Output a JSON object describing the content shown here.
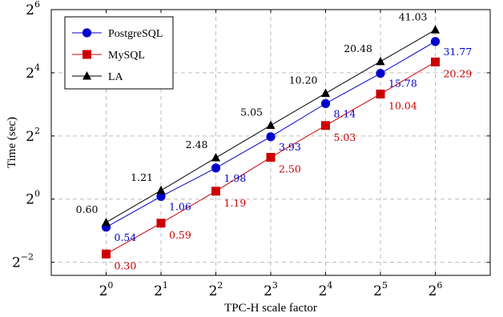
{
  "chart_data": {
    "type": "line",
    "xlabel": "TPC-H scale factor",
    "ylabel": "Time (sec)",
    "x_scale": "log2",
    "y_scale": "log2",
    "x_ticks": [
      {
        "base": "2",
        "exp": "0"
      },
      {
        "base": "2",
        "exp": "1"
      },
      {
        "base": "2",
        "exp": "2"
      },
      {
        "base": "2",
        "exp": "3"
      },
      {
        "base": "2",
        "exp": "4"
      },
      {
        "base": "2",
        "exp": "5"
      },
      {
        "base": "2",
        "exp": "6"
      }
    ],
    "y_ticks": [
      {
        "base": "2",
        "exp": "−2"
      },
      {
        "base": "2",
        "exp": "0"
      },
      {
        "base": "2",
        "exp": "2"
      },
      {
        "base": "2",
        "exp": "4"
      },
      {
        "base": "2",
        "exp": "6"
      }
    ],
    "x": [
      1,
      2,
      4,
      8,
      16,
      32,
      64
    ],
    "xlim": [
      0.5,
      128
    ],
    "ylim": [
      0.1876,
      64
    ],
    "grid": true,
    "grid_style": "dashed",
    "legend_position": "top-left",
    "series": [
      {
        "name": "PostgreSQL",
        "color": "#0000cc",
        "marker": "circle",
        "values": [
          0.54,
          1.06,
          1.98,
          3.93,
          8.14,
          15.78,
          31.77
        ],
        "labels": [
          "0.54",
          "1.06",
          "1.98",
          "3.93",
          "8.14",
          "15.78",
          "31.77"
        ]
      },
      {
        "name": "MySQL",
        "color": "#cc0000",
        "marker": "square",
        "values": [
          0.3,
          0.59,
          1.19,
          2.5,
          5.03,
          10.04,
          20.29
        ],
        "labels": [
          "0.30",
          "0.59",
          "1.19",
          "2.50",
          "5.03",
          "10.04",
          "20.29"
        ]
      },
      {
        "name": "LA",
        "color": "#000000",
        "marker": "triangle",
        "values": [
          0.6,
          1.21,
          2.48,
          5.05,
          10.2,
          20.48,
          41.03
        ],
        "labels": [
          "0.60",
          "1.21",
          "2.48",
          "5.05",
          "10.20",
          "20.48",
          "41.03"
        ]
      }
    ]
  }
}
